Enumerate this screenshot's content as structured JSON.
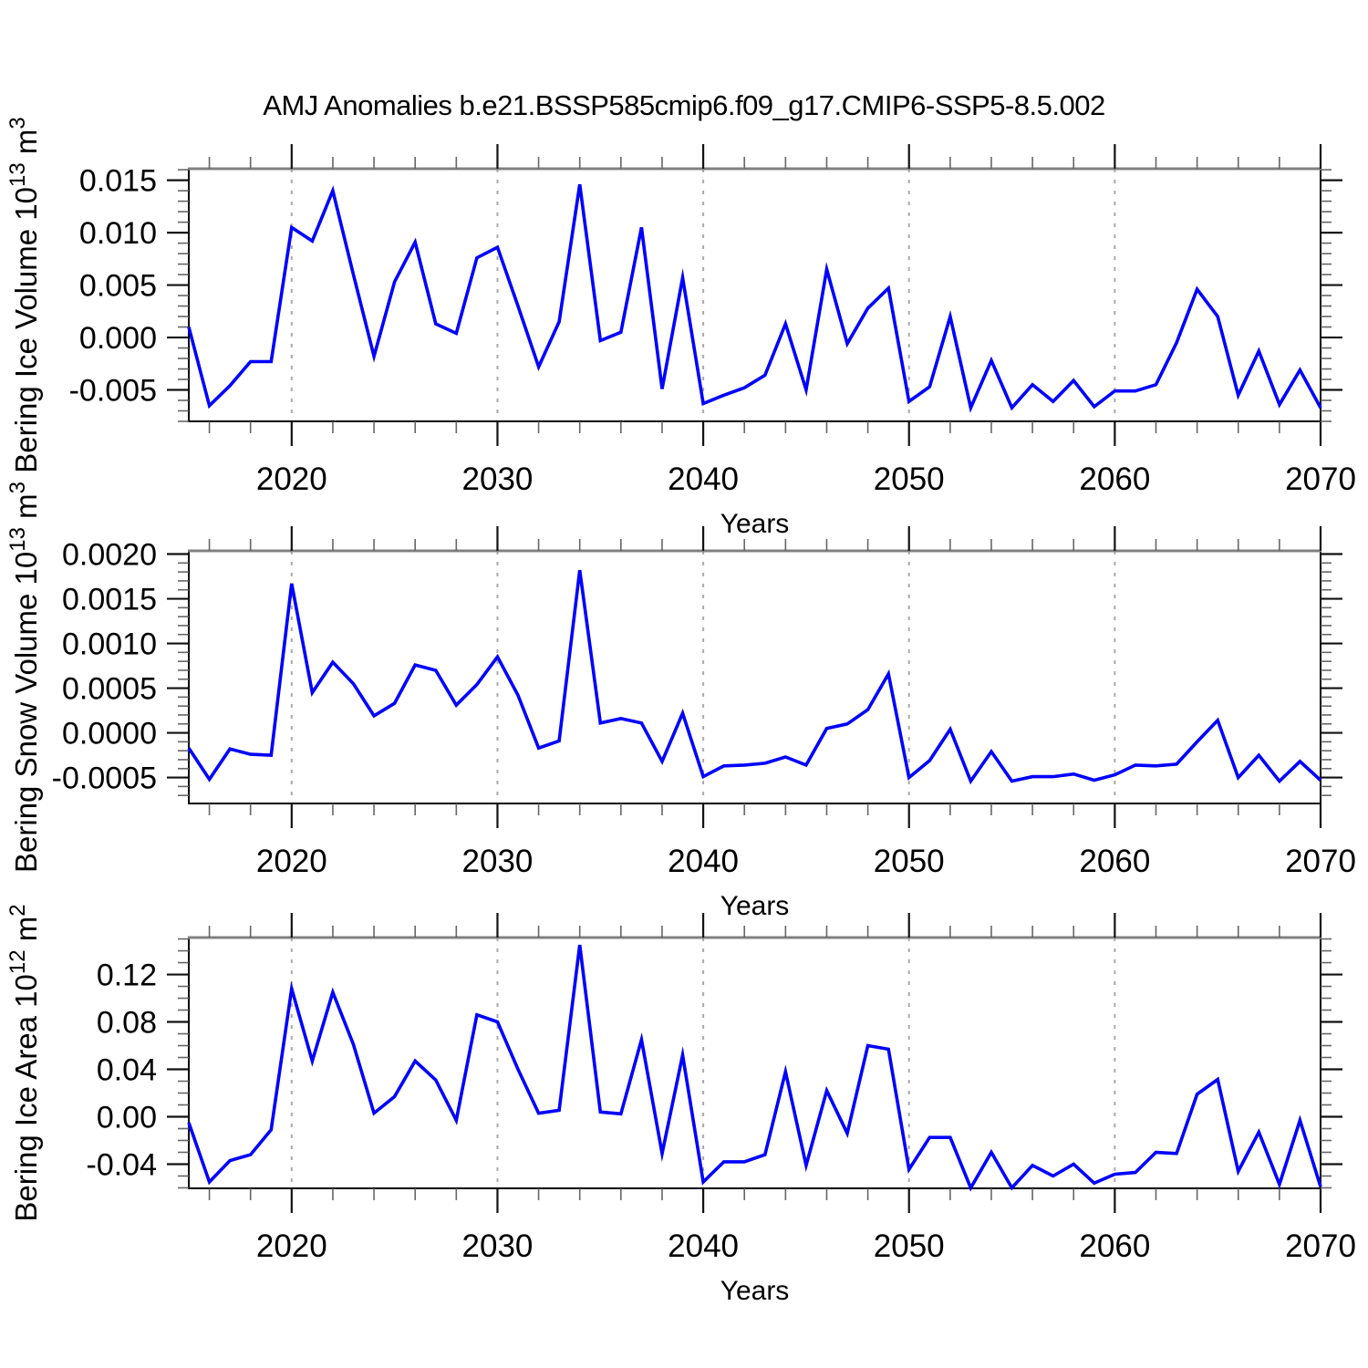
{
  "title": "AMJ Anomalies b.e21.BSSP585cmip6.f09_g17.CMIP6-SSP5-8.5.002",
  "line_color": "#0000ff",
  "gridline_color": "#aaaaaa",
  "years": [
    2015,
    2016,
    2017,
    2018,
    2019,
    2020,
    2021,
    2022,
    2023,
    2024,
    2025,
    2026,
    2027,
    2028,
    2029,
    2030,
    2031,
    2032,
    2033,
    2034,
    2035,
    2036,
    2037,
    2038,
    2039,
    2040,
    2041,
    2042,
    2043,
    2044,
    2045,
    2046,
    2047,
    2048,
    2049,
    2050,
    2051,
    2052,
    2053,
    2054,
    2055,
    2056,
    2057,
    2058,
    2059,
    2060,
    2061,
    2062,
    2063,
    2064,
    2065,
    2066,
    2067,
    2068,
    2069,
    2070
  ],
  "x_axis": {
    "label": "Years",
    "range": [
      2015,
      2070
    ],
    "major_ticks": [
      2020,
      2030,
      2040,
      2050,
      2060,
      2070
    ],
    "major_tick_labels": [
      "2020",
      "2030",
      "2040",
      "2050",
      "2060",
      "2070"
    ],
    "minor_step": 2,
    "gridline_years": [
      2020,
      2030,
      2040,
      2050,
      2060
    ]
  },
  "chart_data": [
    {
      "type": "line",
      "name": "bering-ice-volume",
      "ylabel": "Bering Ice Volume 10^13 m^3",
      "ylabel_parts": [
        {
          "t": "Bering Ice Volume 10"
        },
        {
          "t": "13",
          "sup": true
        },
        {
          "t": " m"
        },
        {
          "t": "3",
          "sup": true
        }
      ],
      "xlabel": "Years",
      "ylim": [
        -0.008,
        0.0161
      ],
      "y_ticks": [
        {
          "value": 0.015,
          "label": "0.015"
        },
        {
          "value": 0.01,
          "label": "0.010"
        },
        {
          "value": 0.005,
          "label": "0.005"
        },
        {
          "value": 0.0,
          "label": "0.000"
        },
        {
          "value": -0.005,
          "label": "-0.005"
        }
      ],
      "y_minor_step": 0.001,
      "values": [
        0.001,
        -0.0065,
        -0.0046,
        -0.0023,
        -0.0023,
        0.0105,
        0.0092,
        0.014,
        0.006,
        -0.0018,
        0.0053,
        0.0091,
        0.0013,
        0.0004,
        0.0076,
        0.0086,
        0.003,
        -0.0028,
        0.0015,
        0.0146,
        -0.0003,
        0.0005,
        0.0105,
        -0.0049,
        0.0057,
        -0.0063,
        -0.0055,
        -0.0048,
        -0.0036,
        0.0013,
        -0.005,
        0.0065,
        -0.0006,
        0.0028,
        0.0047,
        -0.0061,
        -0.0047,
        0.002,
        -0.0067,
        -0.0022,
        -0.0067,
        -0.0045,
        -0.0061,
        -0.0041,
        -0.0066,
        -0.0051,
        -0.0051,
        -0.0045,
        -0.0005,
        0.0046,
        0.002,
        -0.0055,
        -0.0013,
        -0.0064,
        -0.0031,
        -0.0067
      ]
    },
    {
      "type": "line",
      "name": "bering-snow-volume",
      "ylabel": "Bering Snow Volume 10^13 m^3",
      "ylabel_parts": [
        {
          "t": "Bering Snow Volume 10"
        },
        {
          "t": "13",
          "sup": true
        },
        {
          "t": " m"
        },
        {
          "t": "3",
          "sup": true
        }
      ],
      "xlabel": "Years",
      "ylim": [
        -0.00079,
        0.002036
      ],
      "y_ticks": [
        {
          "value": 0.002,
          "label": "0.0020"
        },
        {
          "value": 0.0015,
          "label": "0.0015"
        },
        {
          "value": 0.001,
          "label": "0.0010"
        },
        {
          "value": 0.0005,
          "label": "0.0005"
        },
        {
          "value": 0.0,
          "label": "0.0000"
        },
        {
          "value": -0.0005,
          "label": "-0.0005"
        }
      ],
      "y_minor_step": 0.0001,
      "values": [
        -0.00017,
        -0.00052,
        -0.00018,
        -0.00024,
        -0.00025,
        0.00167,
        0.00045,
        0.00079,
        0.00055,
        0.00019,
        0.00033,
        0.00076,
        0.0007,
        0.00031,
        0.00054,
        0.00085,
        0.00042,
        -0.00017,
        -9e-05,
        0.00182,
        0.00011,
        0.00016,
        0.00011,
        -0.00032,
        0.00022,
        -0.00049,
        -0.00037,
        -0.00036,
        -0.00034,
        -0.00027,
        -0.00036,
        5e-05,
        0.0001,
        0.00026,
        0.00066,
        -0.0005,
        -0.00031,
        4e-05,
        -0.00054,
        -0.00021,
        -0.00054,
        -0.00049,
        -0.00049,
        -0.00046,
        -0.00053,
        -0.00047,
        -0.00036,
        -0.00037,
        -0.00035,
        -0.0001,
        0.00014,
        -0.0005,
        -0.00025,
        -0.00054,
        -0.00032,
        -0.00053
      ]
    },
    {
      "type": "line",
      "name": "bering-ice-area",
      "ylabel": "Bering Ice Area 10^12 m^2",
      "ylabel_parts": [
        {
          "t": "Bering Ice Area 10"
        },
        {
          "t": "12",
          "sup": true
        },
        {
          "t": " m"
        },
        {
          "t": "2",
          "sup": true
        }
      ],
      "xlabel": "Years",
      "ylim": [
        -0.0604,
        0.1512
      ],
      "y_ticks": [
        {
          "value": 0.12,
          "label": "0.12"
        },
        {
          "value": 0.08,
          "label": "0.08"
        },
        {
          "value": 0.04,
          "label": "0.04"
        },
        {
          "value": 0.0,
          "label": "0.00"
        },
        {
          "value": -0.04,
          "label": "-0.04"
        }
      ],
      "y_minor_step": 0.01,
      "values": [
        -0.005,
        -0.055,
        -0.037,
        -0.032,
        -0.011,
        0.108,
        0.047,
        0.105,
        0.061,
        0.003,
        0.017,
        0.047,
        0.031,
        -0.003,
        0.086,
        0.08,
        0.04,
        0.003,
        0.0055,
        0.145,
        0.004,
        0.0025,
        0.065,
        -0.031,
        0.052,
        -0.055,
        -0.038,
        -0.038,
        -0.032,
        0.038,
        -0.041,
        0.022,
        -0.014,
        0.06,
        0.057,
        -0.0445,
        -0.0175,
        -0.0175,
        -0.06,
        -0.03,
        -0.06,
        -0.041,
        -0.05,
        -0.04,
        -0.056,
        -0.0485,
        -0.047,
        -0.03,
        -0.031,
        0.019,
        0.0315,
        -0.046,
        -0.013,
        -0.057,
        -0.003,
        -0.059
      ]
    }
  ]
}
